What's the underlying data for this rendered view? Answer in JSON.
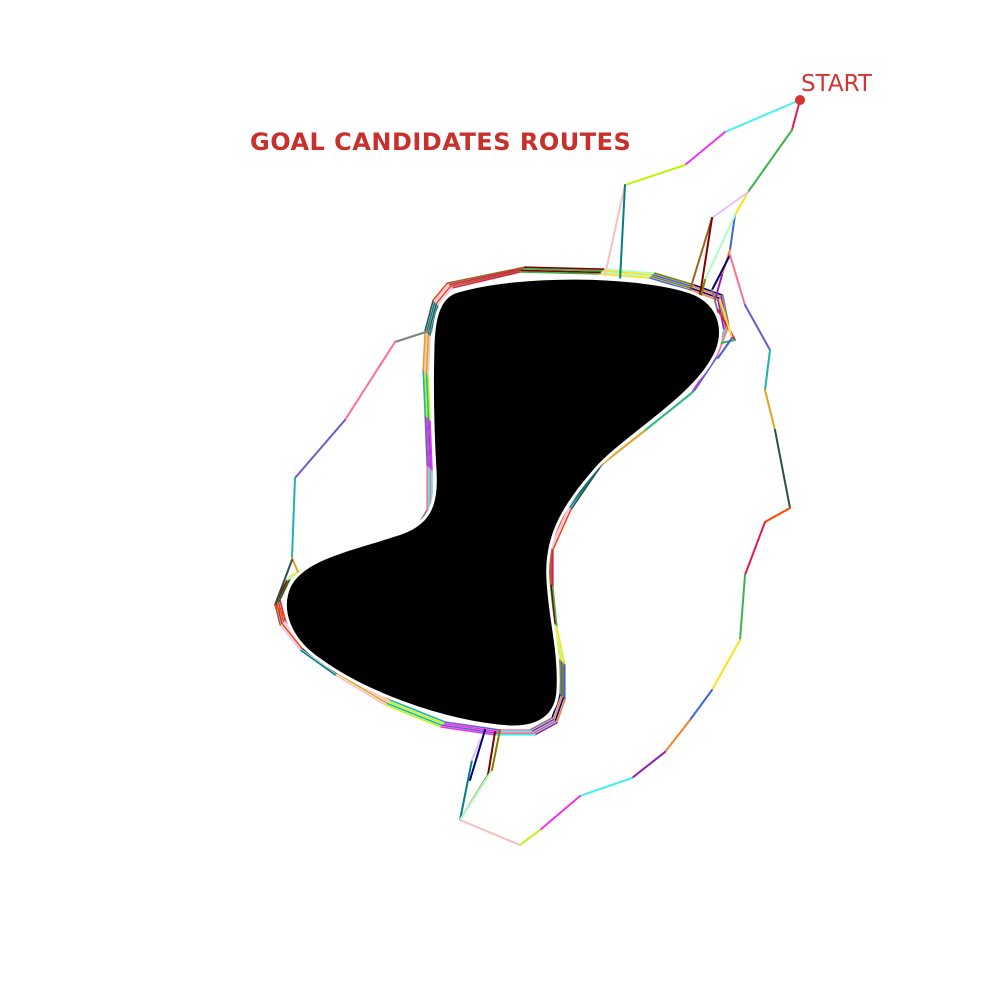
{
  "title": "GOAL CANDIDATES ROUTES",
  "start_label": "START",
  "colors": {
    "title": "#c8302c",
    "start": "#d63333",
    "obstacle": "#000000",
    "obstacle_outline": "#ffffff",
    "background": "#ffffff"
  },
  "palette": [
    "#e6194b",
    "#3cb44b",
    "#ffe119",
    "#4363d8",
    "#f58231",
    "#911eb4",
    "#46f0f0",
    "#f032e6",
    "#bcf60c",
    "#fabebe",
    "#008080",
    "#e6beff",
    "#9a6324",
    "#800000",
    "#aaffc3",
    "#808000",
    "#000075",
    "#808080",
    "#ff6f91",
    "#6a5acd",
    "#20b2aa",
    "#daa520",
    "#2f4f4f",
    "#ff4500"
  ]
}
